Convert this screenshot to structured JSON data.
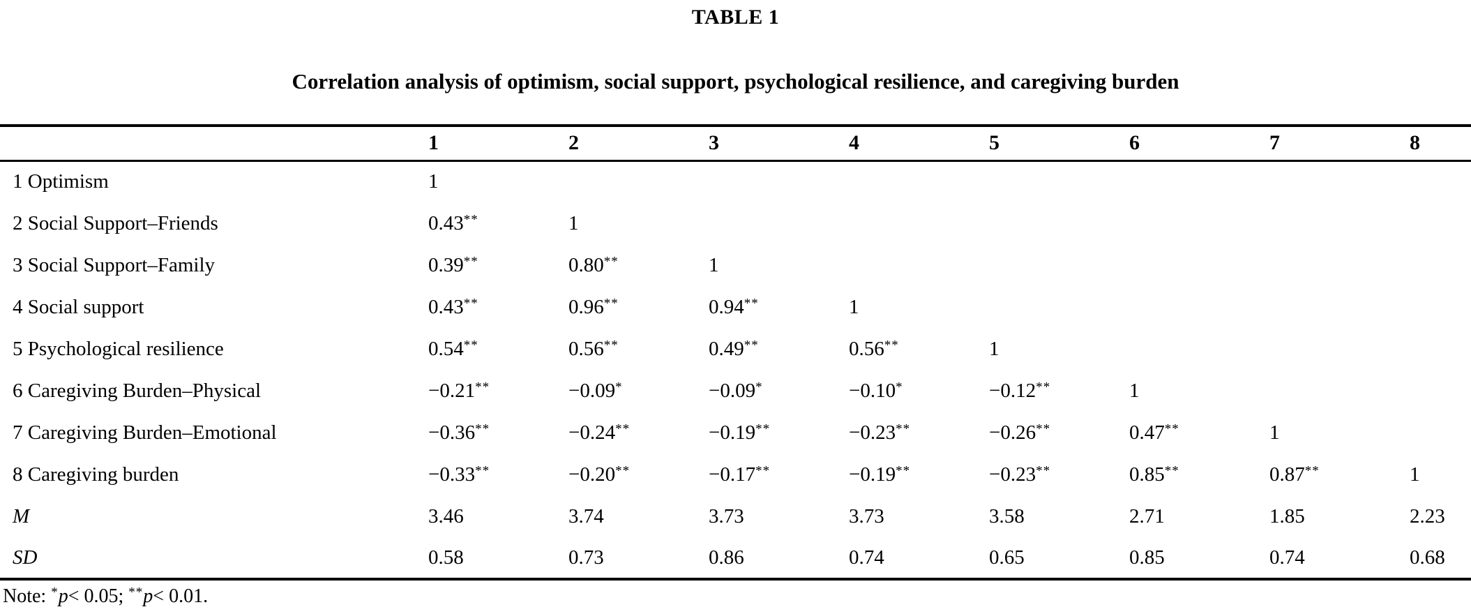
{
  "page": {
    "label": "TABLE 1",
    "caption": "Correlation analysis of optimism, social support, psychological resilience, and caregiving burden"
  },
  "table": {
    "corner": "",
    "columns": [
      "1",
      "2",
      "3",
      "4",
      "5",
      "6",
      "7",
      "8"
    ],
    "rows": [
      {
        "label": "1 Optimism",
        "italic": false,
        "cells": [
          "1",
          "",
          "",
          "",
          "",
          "",
          "",
          ""
        ]
      },
      {
        "label": "2 Social Support–Friends",
        "italic": false,
        "cells": [
          "0.43**",
          "1",
          "",
          "",
          "",
          "",
          "",
          ""
        ]
      },
      {
        "label": "3 Social Support–Family",
        "italic": false,
        "cells": [
          "0.39**",
          "0.80**",
          "1",
          "",
          "",
          "",
          "",
          ""
        ]
      },
      {
        "label": "4 Social support",
        "italic": false,
        "cells": [
          "0.43**",
          "0.96**",
          "0.94**",
          "1",
          "",
          "",
          "",
          ""
        ]
      },
      {
        "label": "5 Psychological resilience",
        "italic": false,
        "cells": [
          "0.54**",
          "0.56**",
          "0.49**",
          "0.56**",
          "1",
          "",
          "",
          ""
        ]
      },
      {
        "label": "6 Caregiving Burden–Physical",
        "italic": false,
        "cells": [
          "−0.21**",
          "−0.09*",
          "−0.09*",
          "−0.10*",
          "−0.12**",
          "1",
          "",
          ""
        ]
      },
      {
        "label": "7 Caregiving Burden–Emotional",
        "italic": false,
        "cells": [
          "−0.36**",
          "−0.24**",
          "−0.19**",
          "−0.23**",
          "−0.26**",
          "0.47**",
          "1",
          ""
        ]
      },
      {
        "label": "8 Caregiving burden",
        "italic": false,
        "cells": [
          "−0.33**",
          "−0.20**",
          "−0.17**",
          "−0.19**",
          "−0.23**",
          "0.85**",
          "0.87**",
          "1"
        ]
      },
      {
        "label": "M",
        "italic": true,
        "cells": [
          "3.46",
          "3.74",
          "3.73",
          "3.73",
          "3.58",
          "2.71",
          "1.85",
          "2.23"
        ]
      },
      {
        "label": "SD",
        "italic": true,
        "cells": [
          "0.58",
          "0.73",
          "0.86",
          "0.74",
          "0.65",
          "0.85",
          "0.74",
          "0.68"
        ]
      }
    ]
  },
  "footnote": {
    "prefix": "Note: ",
    "terms": [
      {
        "stars": "*",
        "symbol": "p",
        "condition": "< 0.05; "
      },
      {
        "stars": "**",
        "symbol": "p",
        "condition": "< 0.01."
      }
    ]
  }
}
